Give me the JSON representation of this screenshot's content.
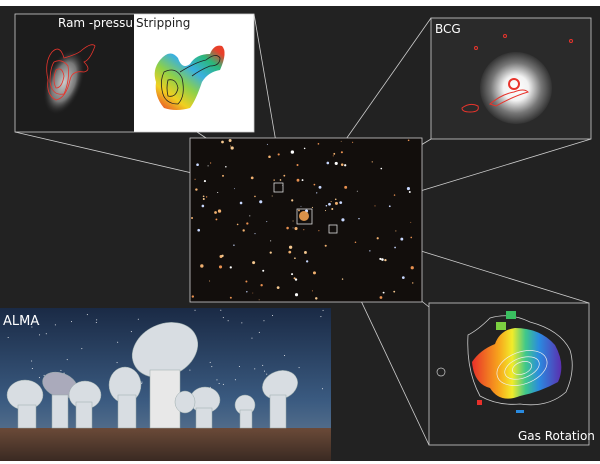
{
  "panels": {
    "ram_pressure": {
      "label_left": "Ram -pressure",
      "label_right": "Stripping"
    },
    "bcg": {
      "label": "BCG"
    },
    "gas_rotation": {
      "label": "Gas Rotation"
    },
    "alma": {
      "label": "ALMA"
    }
  },
  "colors": {
    "background": "#222222",
    "frame": "#d8d8d8",
    "contour_red": "#e8342c",
    "contour_white": "#e6e6e6"
  }
}
